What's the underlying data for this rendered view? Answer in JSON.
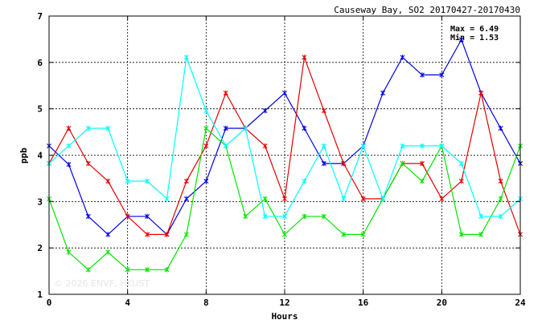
{
  "chart_data": {
    "type": "line",
    "title": "Causeway Bay, SO2 20170427-20170430",
    "xlabel": "Hours",
    "ylabel": "ppb",
    "xlim": [
      0,
      24
    ],
    "ylim": [
      1,
      7
    ],
    "x_ticks": [
      0,
      4,
      8,
      12,
      16,
      20,
      24
    ],
    "y_ticks": [
      1,
      2,
      3,
      4,
      5,
      6,
      7
    ],
    "grid": true,
    "annotations": [
      "Max = 6.49",
      "Min = 1.53"
    ],
    "watermark": "© 2026 ENVF, HKUST",
    "x": [
      0,
      1,
      2,
      3,
      4,
      5,
      6,
      7,
      8,
      9,
      10,
      11,
      12,
      13,
      14,
      15,
      16,
      17,
      18,
      19,
      20,
      21,
      22,
      23,
      24
    ],
    "series": [
      {
        "color": "#0000e6",
        "values": [
          4.2,
          3.8,
          2.68,
          2.29,
          2.68,
          2.68,
          2.29,
          3.06,
          3.44,
          4.58,
          4.58,
          4.96,
          5.34,
          4.58,
          3.82,
          3.82,
          4.2,
          5.34,
          6.11,
          5.73,
          5.73,
          6.49,
          5.34,
          4.58,
          3.82
        ]
      },
      {
        "color": "#e60000",
        "values": [
          3.82,
          4.58,
          3.82,
          3.44,
          2.68,
          2.29,
          2.29,
          3.44,
          4.2,
          5.34,
          4.58,
          4.2,
          3.06,
          6.11,
          4.96,
          3.82,
          3.06,
          3.06,
          3.82,
          3.82,
          3.06,
          3.44,
          5.34,
          3.44,
          2.29
        ]
      },
      {
        "color": "#00e600",
        "values": [
          3.06,
          1.91,
          1.53,
          1.91,
          1.53,
          1.53,
          1.53,
          2.29,
          4.58,
          4.2,
          2.68,
          3.06,
          2.29,
          2.68,
          2.68,
          2.29,
          2.29,
          3.06,
          3.82,
          3.44,
          4.2,
          2.29,
          2.29,
          3.06,
          4.2
        ]
      },
      {
        "color": "#00ffff",
        "values": [
          3.82,
          4.2,
          4.58,
          4.58,
          3.44,
          3.44,
          3.06,
          6.11,
          4.96,
          4.2,
          4.58,
          2.68,
          2.68,
          3.44,
          4.2,
          3.06,
          4.2,
          3.06,
          4.2,
          4.2,
          4.2,
          3.82,
          2.68,
          2.68,
          3.06
        ]
      }
    ]
  }
}
